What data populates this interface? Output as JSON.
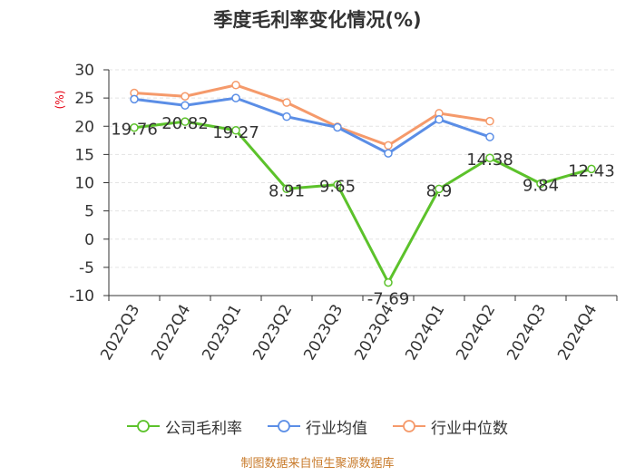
{
  "chart_data": {
    "type": "line",
    "title": "季度毛利率变化情况(%)",
    "ylabel": "(%)",
    "ylim": [
      -10,
      30
    ],
    "yticks": [
      30,
      25,
      20,
      15,
      10,
      5,
      0,
      -5,
      -10
    ],
    "categories": [
      "2022Q3",
      "2022Q4",
      "2023Q1",
      "2023Q2",
      "2023Q3",
      "2023Q4",
      "2024Q1",
      "2024Q2",
      "2024Q3",
      "2024Q4"
    ],
    "grid": true,
    "legend_position": "bottom",
    "series": [
      {
        "name": "公司毛利率",
        "color": "#5cc22b",
        "labeled": true,
        "values": [
          19.76,
          20.82,
          19.27,
          8.91,
          9.65,
          -7.69,
          8.9,
          14.38,
          9.84,
          12.43
        ],
        "labels": [
          "19.76",
          "20.82",
          "19.27",
          "8.91",
          "9.65",
          "-7.69",
          "8.9",
          "14.38",
          "9.84",
          "12.43"
        ]
      },
      {
        "name": "行业均值",
        "color": "#5b8ee6",
        "labeled": false,
        "values": [
          24.8,
          23.7,
          25.0,
          21.7,
          19.8,
          15.2,
          21.2,
          18.1,
          null,
          null
        ]
      },
      {
        "name": "行业中位数",
        "color": "#f59a6b",
        "labeled": false,
        "values": [
          25.9,
          25.3,
          27.3,
          24.2,
          19.9,
          16.6,
          22.3,
          20.9,
          null,
          null
        ]
      }
    ]
  },
  "footer": {
    "source": "制图数据来自恒生聚源数据库"
  }
}
